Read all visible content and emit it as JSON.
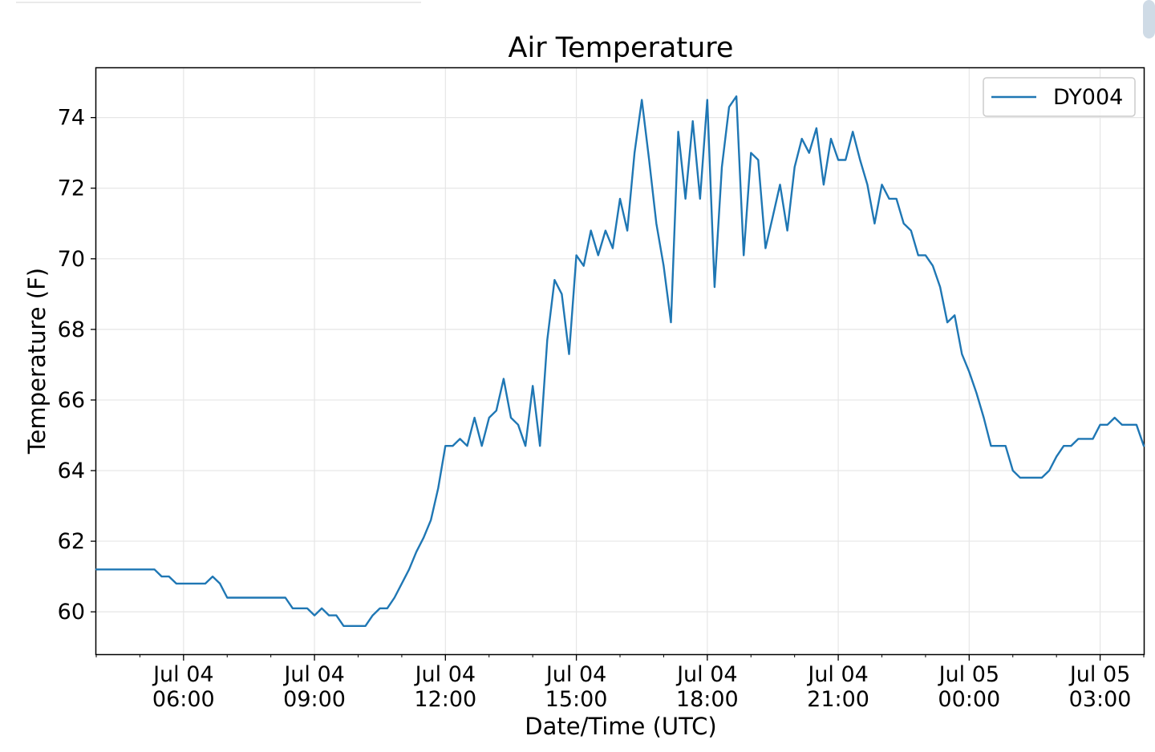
{
  "chart_data": {
    "type": "line",
    "title": "Air Temperature",
    "xlabel": "Date/Time (UTC)",
    "ylabel": "Temperature (F)",
    "ylim": [
      58.8,
      75.4
    ],
    "xlim": [
      "2021-07-04 04:00",
      "2021-07-05 04:00"
    ],
    "grid": true,
    "legend_position": "top-right",
    "yticks": [
      60,
      62,
      64,
      66,
      68,
      70,
      72,
      74
    ],
    "xticks": [
      {
        "line1": "Jul 04",
        "line2": "06:00",
        "time": "2021-07-04 06:00"
      },
      {
        "line1": "Jul 04",
        "line2": "09:00",
        "time": "2021-07-04 09:00"
      },
      {
        "line1": "Jul 04",
        "line2": "12:00",
        "time": "2021-07-04 12:00"
      },
      {
        "line1": "Jul 04",
        "line2": "15:00",
        "time": "2021-07-04 15:00"
      },
      {
        "line1": "Jul 04",
        "line2": "18:00",
        "time": "2021-07-04 18:00"
      },
      {
        "line1": "Jul 04",
        "line2": "21:00",
        "time": "2021-07-04 21:00"
      },
      {
        "line1": "Jul 05",
        "line2": "00:00",
        "time": "2021-07-05 00:00"
      },
      {
        "line1": "Jul 05",
        "line2": "03:00",
        "time": "2021-07-05 03:00"
      }
    ],
    "series": [
      {
        "name": "DY004",
        "color": "#1f77b4",
        "x": [
          "2021-07-04 04:00",
          "2021-07-04 04:10",
          "2021-07-04 04:20",
          "2021-07-04 04:30",
          "2021-07-04 04:40",
          "2021-07-04 04:50",
          "2021-07-04 05:00",
          "2021-07-04 05:10",
          "2021-07-04 05:20",
          "2021-07-04 05:30",
          "2021-07-04 05:40",
          "2021-07-04 05:50",
          "2021-07-04 06:00",
          "2021-07-04 06:10",
          "2021-07-04 06:20",
          "2021-07-04 06:30",
          "2021-07-04 06:40",
          "2021-07-04 06:50",
          "2021-07-04 07:00",
          "2021-07-04 07:10",
          "2021-07-04 07:20",
          "2021-07-04 07:30",
          "2021-07-04 07:40",
          "2021-07-04 07:50",
          "2021-07-04 08:00",
          "2021-07-04 08:10",
          "2021-07-04 08:20",
          "2021-07-04 08:30",
          "2021-07-04 08:40",
          "2021-07-04 08:50",
          "2021-07-04 09:00",
          "2021-07-04 09:10",
          "2021-07-04 09:20",
          "2021-07-04 09:30",
          "2021-07-04 09:40",
          "2021-07-04 09:50",
          "2021-07-04 10:00",
          "2021-07-04 10:10",
          "2021-07-04 10:20",
          "2021-07-04 10:30",
          "2021-07-04 10:40",
          "2021-07-04 10:50",
          "2021-07-04 11:00",
          "2021-07-04 11:10",
          "2021-07-04 11:20",
          "2021-07-04 11:30",
          "2021-07-04 11:40",
          "2021-07-04 11:50",
          "2021-07-04 12:00",
          "2021-07-04 12:10",
          "2021-07-04 12:20",
          "2021-07-04 12:30",
          "2021-07-04 12:40",
          "2021-07-04 12:50",
          "2021-07-04 13:00",
          "2021-07-04 13:10",
          "2021-07-04 13:20",
          "2021-07-04 13:30",
          "2021-07-04 13:40",
          "2021-07-04 13:50",
          "2021-07-04 14:00",
          "2021-07-04 14:10",
          "2021-07-04 14:20",
          "2021-07-04 14:30",
          "2021-07-04 14:40",
          "2021-07-04 14:50",
          "2021-07-04 15:00",
          "2021-07-04 15:10",
          "2021-07-04 15:20",
          "2021-07-04 15:30",
          "2021-07-04 15:40",
          "2021-07-04 15:50",
          "2021-07-04 16:00",
          "2021-07-04 16:10",
          "2021-07-04 16:20",
          "2021-07-04 16:30",
          "2021-07-04 16:40",
          "2021-07-04 16:50",
          "2021-07-04 17:00",
          "2021-07-04 17:10",
          "2021-07-04 17:20",
          "2021-07-04 17:30",
          "2021-07-04 17:40",
          "2021-07-04 17:50",
          "2021-07-04 18:00",
          "2021-07-04 18:10",
          "2021-07-04 18:20",
          "2021-07-04 18:30",
          "2021-07-04 18:40",
          "2021-07-04 18:50",
          "2021-07-04 19:00",
          "2021-07-04 19:10",
          "2021-07-04 19:20",
          "2021-07-04 19:30",
          "2021-07-04 19:40",
          "2021-07-04 19:50",
          "2021-07-04 20:00",
          "2021-07-04 20:10",
          "2021-07-04 20:20",
          "2021-07-04 20:30",
          "2021-07-04 20:40",
          "2021-07-04 20:50",
          "2021-07-04 21:00",
          "2021-07-04 21:10",
          "2021-07-04 21:20",
          "2021-07-04 21:30",
          "2021-07-04 21:40",
          "2021-07-04 21:50",
          "2021-07-04 22:00",
          "2021-07-04 22:10",
          "2021-07-04 22:20",
          "2021-07-04 22:30",
          "2021-07-04 22:40",
          "2021-07-04 22:50",
          "2021-07-04 23:00",
          "2021-07-04 23:10",
          "2021-07-04 23:20",
          "2021-07-04 23:30",
          "2021-07-04 23:40",
          "2021-07-04 23:50",
          "2021-07-05 00:00",
          "2021-07-05 00:10",
          "2021-07-05 00:20",
          "2021-07-05 00:30",
          "2021-07-05 00:40",
          "2021-07-05 00:50",
          "2021-07-05 01:00",
          "2021-07-05 01:10",
          "2021-07-05 01:20",
          "2021-07-05 01:30",
          "2021-07-05 01:40",
          "2021-07-05 01:50",
          "2021-07-05 02:00",
          "2021-07-05 02:10",
          "2021-07-05 02:20",
          "2021-07-05 02:30",
          "2021-07-05 02:40",
          "2021-07-05 02:50",
          "2021-07-05 03:00",
          "2021-07-05 03:10",
          "2021-07-05 03:20",
          "2021-07-05 03:30",
          "2021-07-05 03:40",
          "2021-07-05 03:50",
          "2021-07-05 04:00"
        ],
        "y": [
          61.2,
          61.2,
          61.2,
          61.2,
          61.2,
          61.2,
          61.2,
          61.2,
          61.2,
          61.0,
          61.0,
          60.8,
          60.8,
          60.8,
          60.8,
          60.8,
          61.0,
          60.8,
          60.4,
          60.4,
          60.4,
          60.4,
          60.4,
          60.4,
          60.4,
          60.4,
          60.4,
          60.1,
          60.1,
          60.1,
          59.9,
          60.1,
          59.9,
          59.9,
          59.6,
          59.6,
          59.6,
          59.6,
          59.9,
          60.1,
          60.1,
          60.4,
          60.8,
          61.2,
          61.7,
          62.1,
          62.6,
          63.5,
          64.7,
          64.7,
          64.9,
          64.7,
          65.5,
          64.7,
          65.5,
          65.7,
          66.6,
          65.5,
          65.3,
          64.7,
          66.4,
          64.7,
          67.7,
          69.4,
          69.0,
          67.3,
          70.1,
          69.8,
          70.8,
          70.1,
          70.8,
          70.3,
          71.7,
          70.8,
          73.0,
          74.5,
          72.8,
          71.0,
          69.8,
          68.2,
          73.6,
          71.7,
          73.9,
          71.7,
          74.5,
          69.2,
          72.6,
          74.3,
          74.6,
          70.1,
          73.0,
          72.8,
          70.3,
          71.2,
          72.1,
          70.8,
          72.6,
          73.4,
          73.0,
          73.7,
          72.1,
          73.4,
          72.8,
          72.8,
          73.6,
          72.8,
          72.1,
          71.0,
          72.1,
          71.7,
          71.7,
          71.0,
          70.8,
          70.1,
          70.1,
          69.8,
          69.2,
          68.2,
          68.4,
          67.3,
          66.8,
          66.2,
          65.5,
          64.7,
          64.7,
          64.7,
          64.0,
          63.8,
          63.8,
          63.8,
          63.8,
          64.0,
          64.4,
          64.7,
          64.7,
          64.9,
          64.9,
          64.9,
          65.3,
          65.3,
          65.5,
          65.3,
          65.3,
          65.3,
          64.7
        ]
      }
    ]
  }
}
